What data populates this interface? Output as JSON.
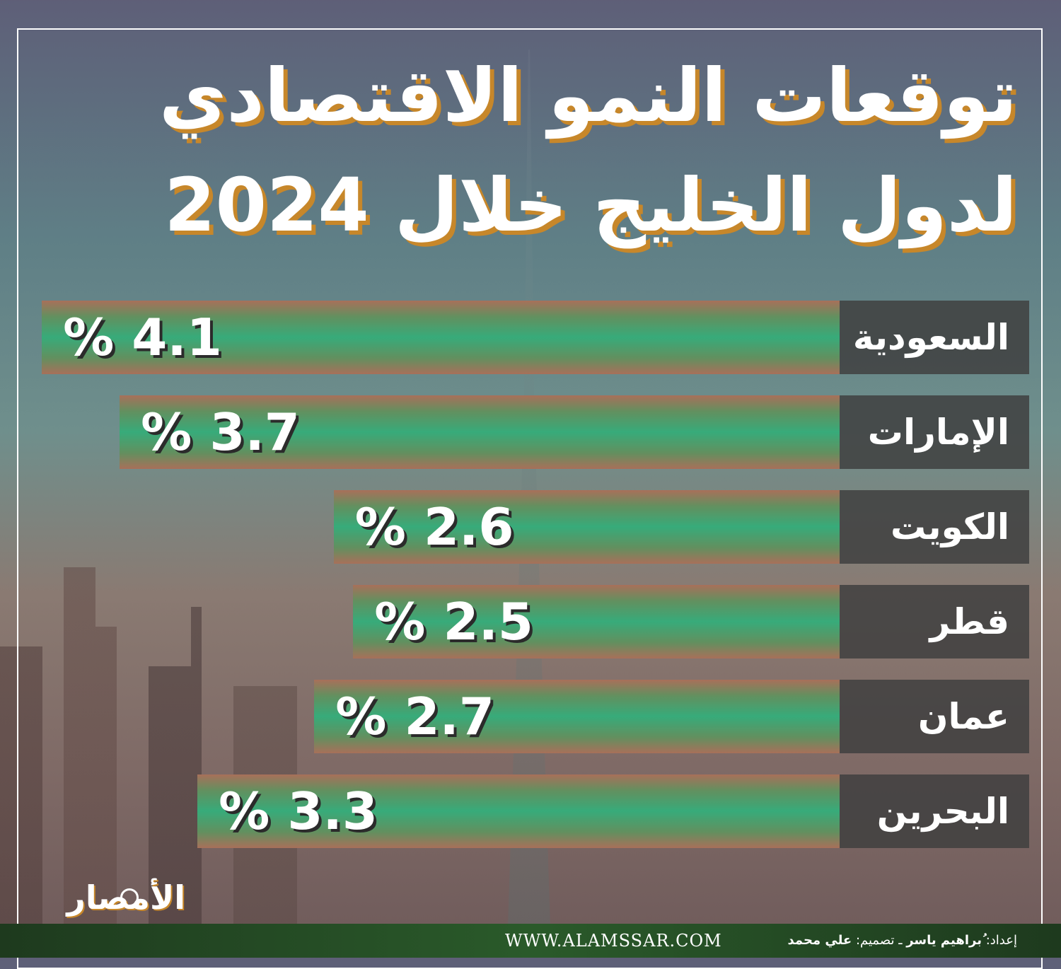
{
  "title": {
    "line1": "توقعات النمو الاقتصادي",
    "line2": "لدول الخليج خلال 2024"
  },
  "chart_data": {
    "type": "bar",
    "title": "توقعات النمو الاقتصادي لدول الخليج خلال 2024",
    "categories": [
      "السعودية",
      "الإمارات",
      "الكويت",
      "قطر",
      "عمان",
      "البحرين"
    ],
    "values": [
      4.1,
      3.7,
      2.6,
      2.5,
      2.7,
      3.3
    ],
    "value_labels": [
      "4.1 %",
      "3.7 %",
      "2.6 %",
      "2.5 %",
      "2.7 %",
      "3.3 %"
    ],
    "unit": "%",
    "orientation": "horizontal",
    "bar_color": "#37ab7a",
    "label_box_color": "#404040"
  },
  "logo": {
    "text": "الأمصار"
  },
  "footer": {
    "site": "WWW.ALAMSSAR.COM",
    "prep_label": "إعداد:",
    "prep_name": "ُبراهيم ياسر",
    "separator": "ـ",
    "design_label": "تصميم:",
    "design_name": "علي محمد"
  }
}
